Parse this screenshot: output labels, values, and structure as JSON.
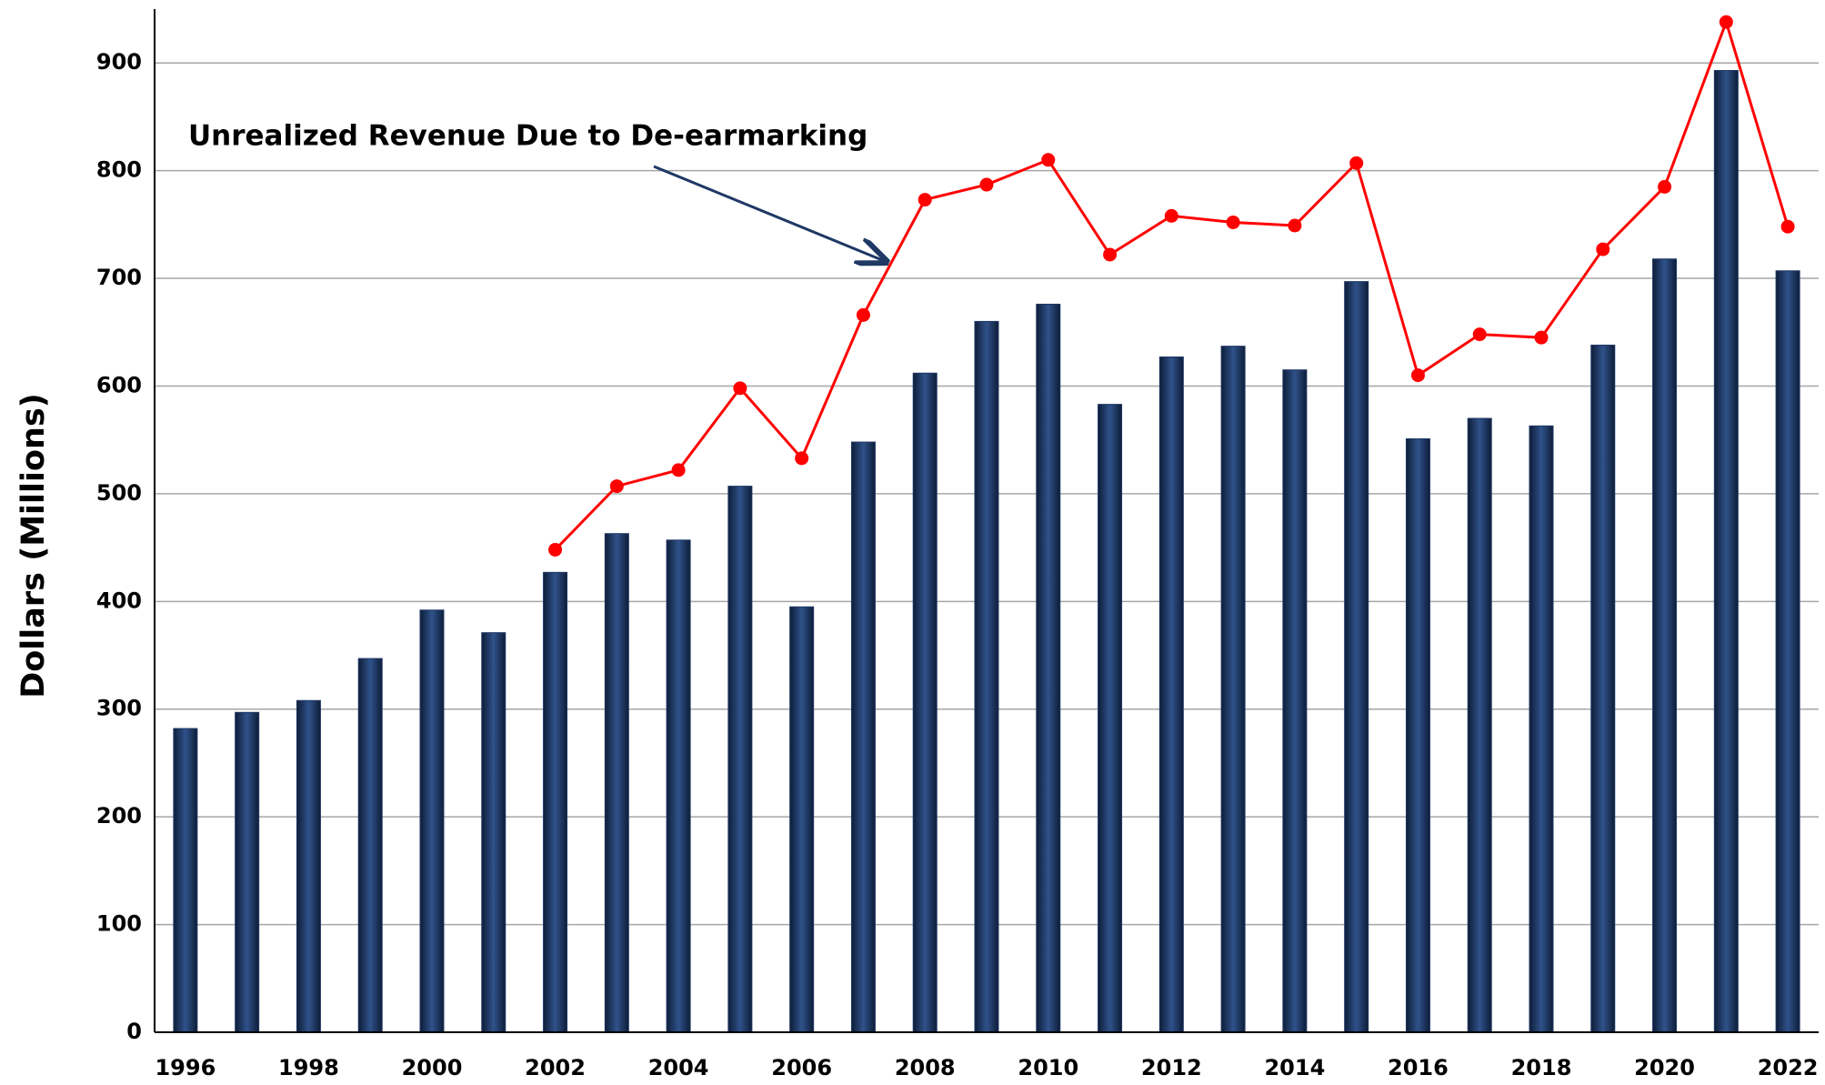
{
  "chart_data": {
    "type": "bar",
    "y_label": "Dollars (Millions)",
    "annotation": "Unrealized Revenue Due to De-earmarking",
    "categories": [
      "1996",
      null,
      "1998",
      null,
      "2000",
      null,
      "2002",
      null,
      "2004",
      null,
      "2006",
      null,
      "2008",
      null,
      "2010",
      null,
      "2012",
      null,
      "2014",
      null,
      "2016",
      null,
      "2018",
      null,
      "2020",
      null,
      "2022"
    ],
    "series": [
      {
        "type": "bar",
        "color": "#1f3864",
        "values": [
          282,
          297,
          308,
          347,
          392,
          371,
          427,
          463,
          457,
          507,
          395,
          548,
          612,
          660,
          676,
          583,
          627,
          637,
          615,
          697,
          551,
          570,
          563,
          638,
          718,
          893,
          707
        ]
      },
      {
        "type": "line",
        "color": "#ff0000",
        "values": [
          null,
          null,
          null,
          null,
          null,
          null,
          448,
          507,
          522,
          598,
          533,
          666,
          773,
          787,
          810,
          722,
          758,
          752,
          749,
          807,
          610,
          648,
          645,
          727,
          785,
          938,
          748
        ]
      }
    ],
    "ylim": [
      0,
      950
    ],
    "yticks": [
      0,
      100,
      200,
      300,
      400,
      500,
      600,
      700,
      800,
      900
    ],
    "grid": true
  }
}
